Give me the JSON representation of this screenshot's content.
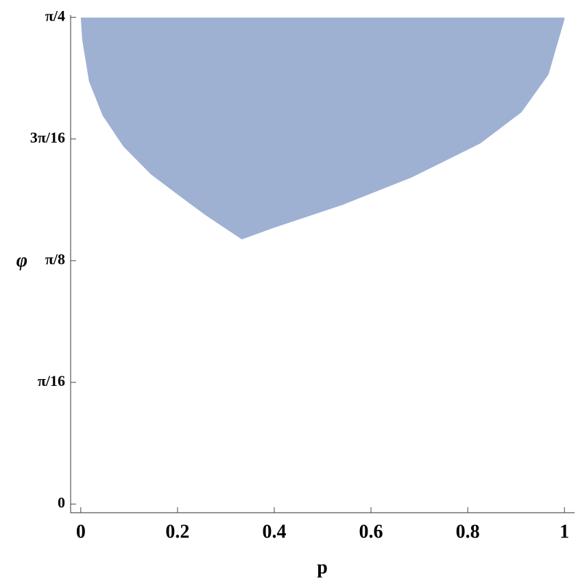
{
  "chart_data": {
    "type": "area",
    "x_label": "p",
    "y_label": "φ",
    "color": "#9eb1d3",
    "x": [
      0,
      0.003,
      0.017,
      0.045,
      0.088,
      0.145,
      0.201,
      0.258,
      0.333,
      0.4,
      0.542,
      0.684,
      0.826,
      0.911,
      0.967,
      1.0
    ],
    "values": [
      0.785,
      0.749,
      0.682,
      0.627,
      0.577,
      0.532,
      0.499,
      0.466,
      0.427,
      0.446,
      0.483,
      0.527,
      0.582,
      0.632,
      0.693,
      0.782
    ],
    "y_upper": [
      0.785,
      0.785,
      0.785,
      0.785,
      0.785,
      0.785,
      0.785,
      0.785,
      0.785,
      0.785,
      0.785,
      0.785,
      0.785,
      0.785,
      0.785,
      0.785
    ],
    "xlim": [
      -0.021,
      1.021
    ],
    "ylim": [
      -0.014,
      0.789
    ],
    "xticks": [
      0,
      {
        "value": 0.2,
        "label": "0.2"
      },
      {
        "value": 0.4,
        "label": "0.4"
      },
      {
        "value": 0.6,
        "label": "0.6"
      },
      {
        "value": 0.8,
        "label": "0.8"
      },
      1
    ],
    "yticks": [
      0,
      {
        "value": 0.19635,
        "label": "π/16"
      },
      {
        "value": 0.3927,
        "label": "π/8"
      },
      {
        "value": 0.58905,
        "label": "3π/16"
      },
      {
        "value": 0.7854,
        "label": "π/4"
      }
    ]
  }
}
